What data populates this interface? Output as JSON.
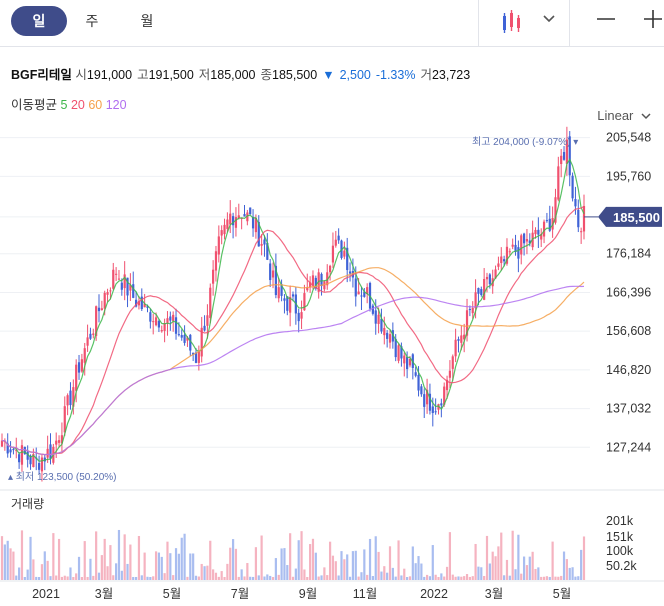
{
  "toolbar": {
    "tabs": [
      {
        "label": "일"
      },
      {
        "label": "주"
      },
      {
        "label": "월"
      }
    ],
    "active_tab": 0,
    "chart_type_icon": "candlestick-icon",
    "minus_icon": "minus-icon",
    "plus_icon": "plus-icon"
  },
  "stock": {
    "name": "BGF리테일",
    "open_label": "시",
    "open": "191,000",
    "high_label": "고",
    "high": "191,500",
    "low_label": "저",
    "low": "185,000",
    "close_label": "종",
    "close": "185,500",
    "change_arrow": "▼",
    "change": "2,500",
    "change_pct": "-1.33%",
    "volume_label": "거",
    "volume": "23,723"
  },
  "moving_average": {
    "label": "이동평균",
    "periods": [
      {
        "period": "5",
        "color": "#3cb64a"
      },
      {
        "period": "20",
        "color": "#f0506e"
      },
      {
        "period": "60",
        "color": "#f5a04a"
      },
      {
        "period": "120",
        "color": "#b06ef0"
      }
    ]
  },
  "scale_mode": "Linear",
  "colors": {
    "up": "#f0506e",
    "down": "#3f62d6",
    "current": "#3f4c8a",
    "vol_up": "#f5b3c0",
    "vol_down": "#a9bdf0"
  },
  "chart_data": {
    "type": "candlestick",
    "y_ticks": [
      "205,548",
      "195,760",
      "185,500",
      "176,184",
      "166,396",
      "156,608",
      "146,820",
      "137,032",
      "127,244"
    ],
    "y_tick_values": [
      205548,
      195760,
      185500,
      176184,
      166396,
      156608,
      146820,
      137032,
      127244
    ],
    "current_price": "185,500",
    "current_value": 185500,
    "max_annotation": "최고 204,000 (-9.07%)",
    "min_annotation": "최저 123,500 (50.20%)",
    "x_labels": [
      "2021",
      "3월",
      "5월",
      "7월",
      "9월",
      "11월",
      "2022",
      "3월",
      "5월"
    ],
    "volume_title": "거래량",
    "volume_ticks": [
      "201k",
      "151k",
      "100k",
      "50.2k"
    ],
    "ylim": [
      121000,
      210000
    ],
    "price_path": [
      [
        0,
        129000
      ],
      [
        8,
        125000
      ],
      [
        12,
        123500
      ],
      [
        18,
        127000
      ],
      [
        22,
        135000
      ],
      [
        27,
        148000
      ],
      [
        32,
        158000
      ],
      [
        36,
        166000
      ],
      [
        40,
        172000
      ],
      [
        45,
        166000
      ],
      [
        50,
        162000
      ],
      [
        55,
        160000
      ],
      [
        60,
        158000
      ],
      [
        64,
        154000
      ],
      [
        68,
        150000
      ],
      [
        72,
        162000
      ],
      [
        76,
        178000
      ],
      [
        80,
        186000
      ],
      [
        84,
        187000
      ],
      [
        88,
        184000
      ],
      [
        92,
        178000
      ],
      [
        96,
        166000
      ],
      [
        100,
        164000
      ],
      [
        104,
        162000
      ],
      [
        108,
        168000
      ],
      [
        112,
        170000
      ],
      [
        116,
        178000
      ],
      [
        120,
        177000
      ],
      [
        124,
        168000
      ],
      [
        128,
        166000
      ],
      [
        132,
        160000
      ],
      [
        136,
        156000
      ],
      [
        140,
        150000
      ],
      [
        144,
        146000
      ],
      [
        148,
        140000
      ],
      [
        152,
        138000
      ],
      [
        155,
        142000
      ],
      [
        158,
        150000
      ],
      [
        162,
        158000
      ],
      [
        166,
        164000
      ],
      [
        170,
        168000
      ],
      [
        174,
        172000
      ],
      [
        178,
        176000
      ],
      [
        182,
        178000
      ],
      [
        186,
        180000
      ],
      [
        190,
        182000
      ],
      [
        193,
        186000
      ],
      [
        196,
        200000
      ],
      [
        198,
        204000
      ],
      [
        200,
        192000
      ],
      [
        202,
        184000
      ],
      [
        204,
        185500
      ]
    ]
  }
}
